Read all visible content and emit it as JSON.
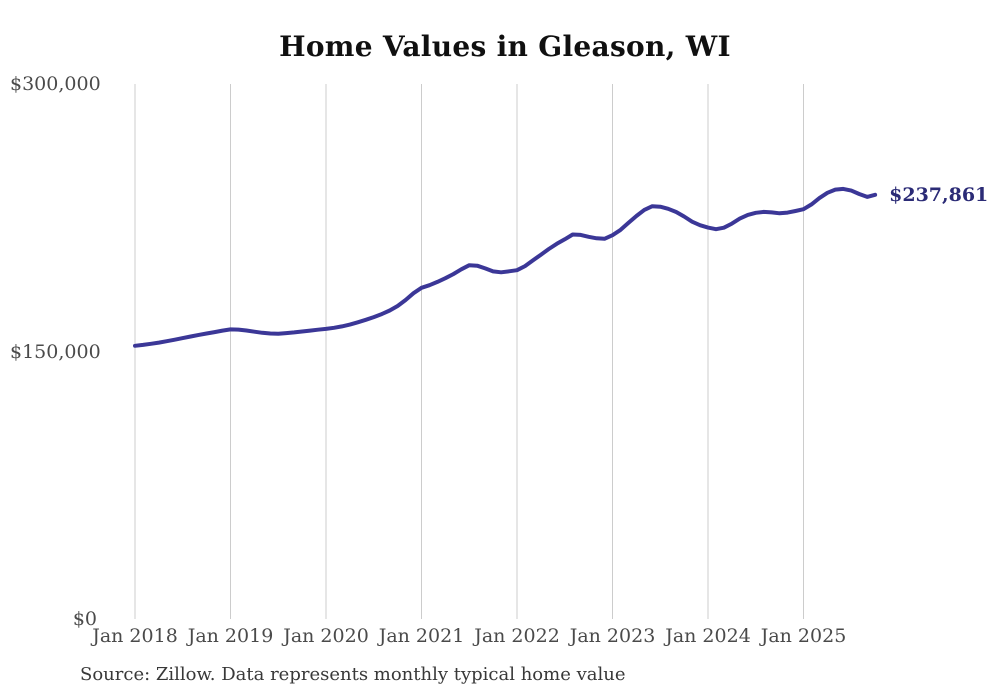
{
  "page": {
    "title": "Home Values in Gleason, WI",
    "source_note": "Source: Zillow. Data represents monthly typical home value"
  },
  "chart_data": {
    "type": "line",
    "title": "Home Values in Gleason, WI",
    "xlabel": "",
    "ylabel": "",
    "ylim": [
      0,
      300000
    ],
    "y_ticks": [
      300000,
      150000,
      0
    ],
    "y_tick_labels": [
      "$300,000",
      "$150,000",
      "$0"
    ],
    "x_tick_labels": [
      "Jan 2018",
      "Jan 2019",
      "Jan 2020",
      "Jan 2021",
      "Jan 2022",
      "Jan 2023",
      "Jan 2024",
      "Jan 2025"
    ],
    "grid": "vertical-only",
    "legend": "none",
    "frequency": "monthly",
    "x_start": "2018-01",
    "x_end": "2025-10",
    "end_label": "$237,861",
    "final_value": 237861,
    "series": [
      {
        "name": "Typical home value",
        "x": [
          "2018-01",
          "2018-02",
          "2018-03",
          "2018-04",
          "2018-05",
          "2018-06",
          "2018-07",
          "2018-08",
          "2018-09",
          "2018-10",
          "2018-11",
          "2018-12",
          "2019-01",
          "2019-02",
          "2019-03",
          "2019-04",
          "2019-05",
          "2019-06",
          "2019-07",
          "2019-08",
          "2019-09",
          "2019-10",
          "2019-11",
          "2019-12",
          "2020-01",
          "2020-02",
          "2020-03",
          "2020-04",
          "2020-05",
          "2020-06",
          "2020-07",
          "2020-08",
          "2020-09",
          "2020-10",
          "2020-11",
          "2020-12",
          "2021-01",
          "2021-02",
          "2021-03",
          "2021-04",
          "2021-05",
          "2021-06",
          "2021-07",
          "2021-08",
          "2021-09",
          "2021-10",
          "2021-11",
          "2021-12",
          "2022-01",
          "2022-02",
          "2022-03",
          "2022-04",
          "2022-05",
          "2022-06",
          "2022-07",
          "2022-08",
          "2022-09",
          "2022-10",
          "2022-11",
          "2022-12",
          "2023-01",
          "2023-02",
          "2023-03",
          "2023-04",
          "2023-05",
          "2023-06",
          "2023-07",
          "2023-08",
          "2023-09",
          "2023-10",
          "2023-11",
          "2023-12",
          "2024-01",
          "2024-02",
          "2024-03",
          "2024-04",
          "2024-05",
          "2024-06",
          "2024-07",
          "2024-08",
          "2024-09",
          "2024-10",
          "2024-11",
          "2024-12",
          "2025-01",
          "2025-02",
          "2025-03",
          "2025-04",
          "2025-05",
          "2025-06",
          "2025-07",
          "2025-08",
          "2025-09",
          "2025-10"
        ],
        "values": [
          153200,
          153700,
          154300,
          155000,
          155800,
          156600,
          157500,
          158400,
          159300,
          160100,
          160900,
          161700,
          162400,
          162300,
          161800,
          161100,
          160500,
          160100,
          160000,
          160300,
          160700,
          161200,
          161700,
          162200,
          162700,
          163300,
          164100,
          165100,
          166400,
          167800,
          169300,
          171000,
          173000,
          175500,
          178900,
          182700,
          185700,
          187200,
          189000,
          191100,
          193400,
          196100,
          198400,
          198100,
          196600,
          194900,
          194400,
          195000,
          195600,
          197900,
          201100,
          204300,
          207500,
          210400,
          212900,
          215600,
          215400,
          214300,
          213500,
          213200,
          215200,
          218200,
          222100,
          226000,
          229400,
          231500,
          231200,
          230000,
          228200,
          225700,
          222800,
          220800,
          219500,
          218600,
          219400,
          221700,
          224500,
          226600,
          227800,
          228300,
          228000,
          227500,
          227900,
          228800,
          229800,
          232500,
          236000,
          239000,
          240800,
          241200,
          240200,
          238300,
          236700,
          237861
        ]
      }
    ],
    "colors": {
      "line": "#3b3797",
      "end_label": "#2b2b76",
      "grid": "#cccccc",
      "axis_text": "#4a4a4a",
      "title_text": "#101010",
      "source_text": "#383838",
      "background": "#ffffff"
    }
  }
}
